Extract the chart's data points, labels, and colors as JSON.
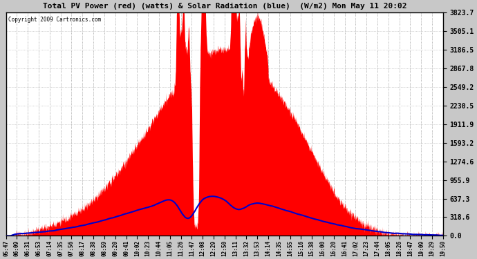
{
  "title": "Total PV Power (red) (watts) & Solar Radiation (blue)  (W/m2) Mon May 11 20:02",
  "copyright": "Copyright 2009 Cartronics.com",
  "red_color": "#ff0000",
  "blue_color": "#0000cc",
  "ymax": 3823.7,
  "yticks": [
    0.0,
    318.6,
    637.3,
    955.9,
    1274.6,
    1593.2,
    1911.9,
    2230.5,
    2549.2,
    2867.8,
    3186.5,
    3505.1,
    3823.7
  ],
  "x_labels": [
    "05:47",
    "06:09",
    "06:31",
    "06:53",
    "07:14",
    "07:35",
    "07:56",
    "08:17",
    "08:38",
    "08:59",
    "09:20",
    "09:41",
    "10:02",
    "10:23",
    "10:44",
    "11:05",
    "11:26",
    "11:47",
    "12:08",
    "12:29",
    "12:50",
    "13:11",
    "13:32",
    "13:53",
    "14:14",
    "14:35",
    "14:55",
    "15:16",
    "15:38",
    "16:00",
    "16:20",
    "16:41",
    "17:02",
    "17:23",
    "17:44",
    "18:05",
    "18:26",
    "18:47",
    "19:09",
    "19:29",
    "19:50"
  ],
  "n_points": 2000,
  "solar_scale": 700,
  "pv_scale": 3823.7
}
